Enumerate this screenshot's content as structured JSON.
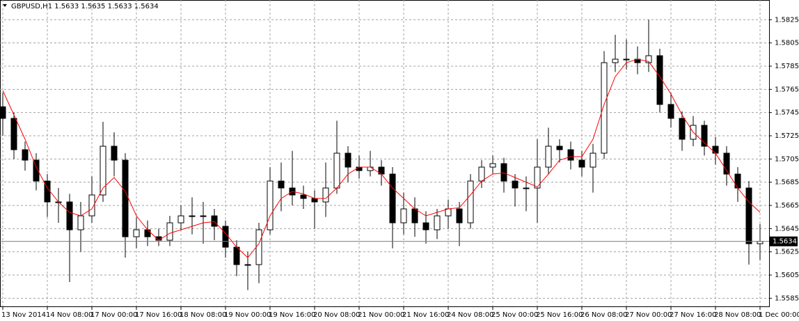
{
  "chart_data": {
    "type": "candlestick",
    "title": "GBPUSD,H1  1.5633 1.5635 1.5633 1.5634",
    "categories": [
      "13 Nov 2014",
      null,
      null,
      null,
      "14 Nov 08:00",
      null,
      null,
      null,
      "17 Nov 00:00",
      null,
      null,
      null,
      "17 Nov 16:00",
      null,
      null,
      null,
      "18 Nov 08:00",
      null,
      null,
      null,
      "19 Nov 00:00",
      null,
      null,
      null,
      "19 Nov 16:00",
      null,
      null,
      null,
      "20 Nov 08:00",
      null,
      null,
      null,
      "21 Nov 00:00",
      null,
      null,
      null,
      "21 Nov 16:00",
      null,
      null,
      null,
      "24 Nov 08:00",
      null,
      null,
      null,
      "25 Nov 00:00",
      null,
      null,
      null,
      "25 Nov 16:00",
      null,
      null,
      null,
      "26 Nov 08:00",
      null,
      null,
      null,
      "27 Nov 00:00",
      null,
      null,
      null,
      "27 Nov 16:00",
      null,
      null,
      null,
      "28 Nov 08:00",
      null,
      null,
      null,
      "1 Dec 00:00"
    ],
    "open": [
      1.575,
      1.574,
      1.5713,
      1.5704,
      1.5686,
      1.5668,
      1.5668,
      1.5644,
      1.5656,
      1.5674,
      1.5716,
      1.5704,
      1.5638,
      1.5644,
      1.5638,
      1.5635,
      1.565,
      1.5656,
      1.5656,
      1.5656,
      1.5647,
      1.5629,
      1.5614,
      1.5614,
      1.5644,
      1.5686,
      1.568,
      1.5674,
      1.5671,
      1.5668,
      1.568,
      1.571,
      1.5698,
      1.5695,
      1.5698,
      1.5692,
      1.565,
      1.5662,
      1.565,
      1.5644,
      1.5656,
      1.5662,
      1.565,
      1.5686,
      1.5698,
      1.5701,
      1.5686,
      1.568,
      1.568,
      1.5698,
      1.5716,
      1.5713,
      1.5704,
      1.5698,
      1.571,
      1.5788,
      1.5791,
      1.5791,
      1.5788,
      1.5794,
      1.5752,
      1.574,
      1.5722,
      1.5734,
      1.5716,
      1.571,
      1.5692,
      1.568,
      1.5632
    ],
    "high": [
      1.5762,
      1.5745,
      1.572,
      1.571,
      1.5692,
      1.568,
      1.5675,
      1.5668,
      1.569,
      1.5737,
      1.5728,
      1.571,
      1.5655,
      1.5652,
      1.5645,
      1.5656,
      1.5665,
      1.5672,
      1.5668,
      1.5662,
      1.5652,
      1.5635,
      1.5625,
      1.565,
      1.5698,
      1.5702,
      1.5712,
      1.5682,
      1.5678,
      1.5702,
      1.5738,
      1.5716,
      1.5708,
      1.5712,
      1.5704,
      1.5698,
      1.5676,
      1.5672,
      1.566,
      1.5662,
      1.567,
      1.5668,
      1.5692,
      1.5704,
      1.5708,
      1.5706,
      1.5692,
      1.569,
      1.5722,
      1.5732,
      1.5722,
      1.572,
      1.5712,
      1.5718,
      1.5798,
      1.5812,
      1.5808,
      1.5802,
      1.5825,
      1.58,
      1.5762,
      1.5746,
      1.5742,
      1.5738,
      1.5724,
      1.5716,
      1.5698,
      1.5686,
      1.5649
    ],
    "low": [
      1.5725,
      1.5705,
      1.5695,
      1.5678,
      1.5655,
      1.565,
      1.5599,
      1.5625,
      1.565,
      1.5668,
      1.569,
      1.562,
      1.5628,
      1.563,
      1.563,
      1.563,
      1.5644,
      1.564,
      1.5632,
      1.5635,
      1.562,
      1.5604,
      1.5592,
      1.5598,
      1.564,
      1.566,
      1.5665,
      1.5662,
      1.5645,
      1.5655,
      1.5675,
      1.5685,
      1.5688,
      1.569,
      1.5682,
      1.5628,
      1.564,
      1.5638,
      1.5632,
      1.5636,
      1.5645,
      1.563,
      1.5645,
      1.568,
      1.5692,
      1.5676,
      1.5664,
      1.566,
      1.565,
      1.5692,
      1.5702,
      1.5696,
      1.569,
      1.5676,
      1.5705,
      1.578,
      1.5782,
      1.5778,
      1.578,
      1.5745,
      1.5732,
      1.5712,
      1.5716,
      1.5708,
      1.57,
      1.5682,
      1.5668,
      1.5614,
      1.5618
    ],
    "close": [
      1.574,
      1.5713,
      1.5704,
      1.5686,
      1.5668,
      1.5668,
      1.5644,
      1.5656,
      1.5674,
      1.5716,
      1.5704,
      1.5638,
      1.5644,
      1.5638,
      1.5635,
      1.565,
      1.5656,
      1.5656,
      1.5656,
      1.5647,
      1.5629,
      1.5614,
      1.5614,
      1.5644,
      1.5686,
      1.568,
      1.5674,
      1.5671,
      1.5668,
      1.568,
      1.571,
      1.5698,
      1.5695,
      1.5698,
      1.5692,
      1.565,
      1.5662,
      1.565,
      1.5644,
      1.5656,
      1.5662,
      1.565,
      1.5686,
      1.5698,
      1.5701,
      1.5686,
      1.568,
      1.568,
      1.5698,
      1.5716,
      1.5713,
      1.5704,
      1.5698,
      1.571,
      1.5788,
      1.5791,
      1.5791,
      1.5788,
      1.5794,
      1.5752,
      1.574,
      1.5722,
      1.5734,
      1.5716,
      1.571,
      1.5692,
      1.568,
      1.5632,
      1.5634
    ],
    "ma": {
      "color": "#ff0000",
      "values": [
        1.5764,
        1.5743,
        1.5722,
        1.5698,
        1.568,
        1.5668,
        1.5659,
        1.5656,
        1.5662,
        1.568,
        1.5689,
        1.5677,
        1.5656,
        1.5644,
        1.5635,
        1.5641,
        1.5644,
        1.5647,
        1.565,
        1.5651,
        1.5641,
        1.5629,
        1.562,
        1.5632,
        1.5656,
        1.5671,
        1.5677,
        1.5675,
        1.5671,
        1.5671,
        1.568,
        1.5692,
        1.5698,
        1.5698,
        1.5692,
        1.568,
        1.5671,
        1.5662,
        1.5656,
        1.5659,
        1.5662,
        1.5663,
        1.5674,
        1.5686,
        1.5692,
        1.5693,
        1.5689,
        1.5685,
        1.5681,
        1.5692,
        1.5704,
        1.5707,
        1.5707,
        1.5722,
        1.5752,
        1.5776,
        1.5788,
        1.5791,
        1.5789,
        1.5776,
        1.5761,
        1.5743,
        1.5728,
        1.5719,
        1.571,
        1.5695,
        1.568,
        1.5668,
        1.5659
      ]
    },
    "up_color": "#ffffff",
    "down_color": "#000000",
    "wick_color": "#000000",
    "last_price": 1.5634,
    "ylim": [
      1.5578,
      1.5842
    ],
    "yticks": [
      1.5825,
      1.5805,
      1.5785,
      1.5765,
      1.5745,
      1.5725,
      1.5705,
      1.5685,
      1.5665,
      1.5645,
      1.5625,
      1.5605,
      1.5585
    ],
    "grid": true
  }
}
